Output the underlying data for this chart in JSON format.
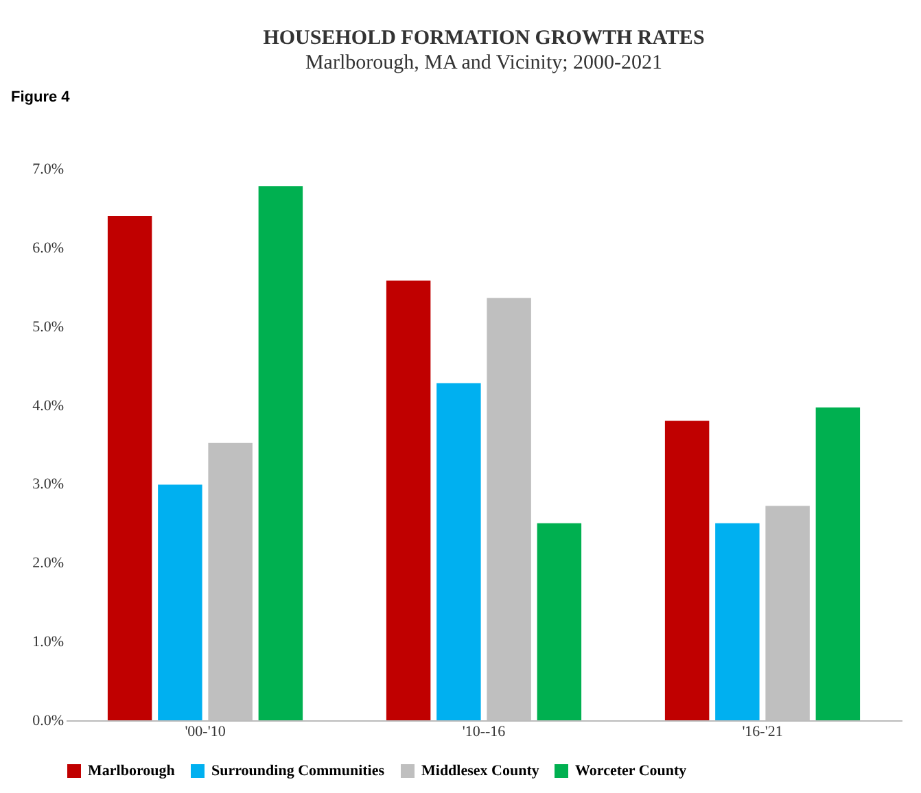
{
  "chart_data": {
    "type": "bar",
    "title": "HOUSEHOLD FORMATION GROWTH RATES",
    "subtitle": "Marlborough, MA and Vicinity; 2000-2021",
    "annotations": [
      "Figure 4"
    ],
    "categories": [
      "'00-'10",
      "'10--16",
      "'16-'21"
    ],
    "series": [
      {
        "name": "Marlborough",
        "color": "#c00000",
        "values": [
          6.4,
          5.58,
          3.8
        ]
      },
      {
        "name": "Surrounding Communities",
        "color": "#00b0f0",
        "values": [
          2.99,
          4.28,
          2.5
        ]
      },
      {
        "name": "Middlesex County",
        "color": "#bfbfbf",
        "values": [
          3.52,
          5.36,
          2.72
        ]
      },
      {
        "name": "Worceter County",
        "color": "#00b050",
        "values": [
          6.78,
          2.5,
          3.97
        ]
      }
    ],
    "ylim": [
      0,
      7
    ],
    "yticks": [
      {
        "value": 0,
        "label": "0.0%"
      },
      {
        "value": 1,
        "label": "1.0%"
      },
      {
        "value": 2,
        "label": "2.0%"
      },
      {
        "value": 3,
        "label": "3.0%"
      },
      {
        "value": 4,
        "label": "4.0%"
      },
      {
        "value": 5,
        "label": "5.0%"
      },
      {
        "value": 6,
        "label": "6.0%"
      },
      {
        "value": 7,
        "label": "7.0%"
      }
    ],
    "grid": false,
    "legend": "bottom"
  }
}
